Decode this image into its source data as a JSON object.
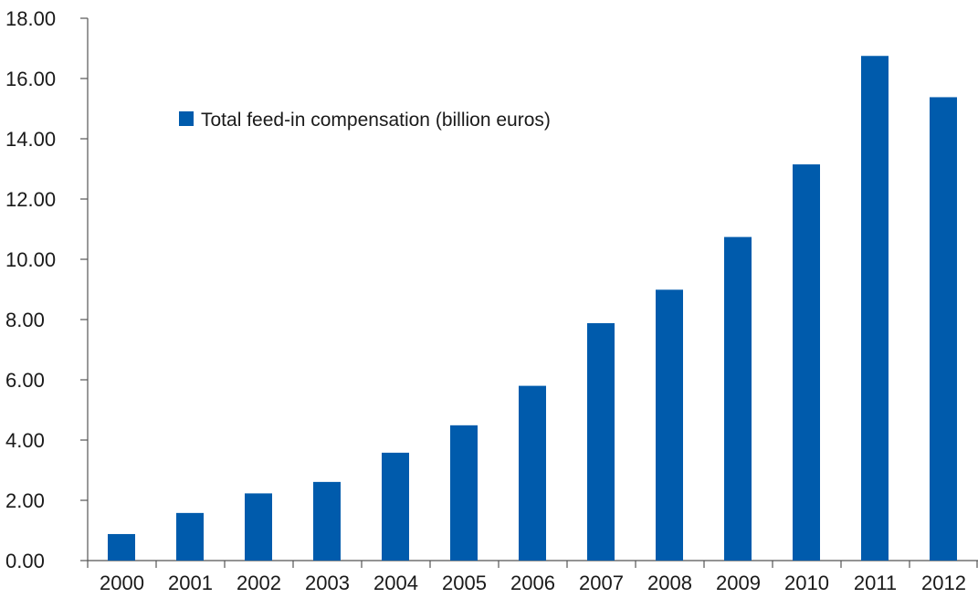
{
  "chart_data": {
    "type": "bar",
    "title": "",
    "xlabel": "",
    "ylabel": "",
    "categories": [
      "2000",
      "2001",
      "2002",
      "2003",
      "2004",
      "2005",
      "2006",
      "2007",
      "2008",
      "2009",
      "2010",
      "2011",
      "2012"
    ],
    "series": [
      {
        "name": "Total feed-in compensation (billion euros)",
        "values": [
          0.88,
          1.58,
          2.23,
          2.61,
          3.58,
          4.49,
          5.8,
          7.88,
          8.99,
          10.74,
          13.15,
          16.75,
          15.38
        ],
        "color": "#005BAC"
      }
    ],
    "ylim": [
      0,
      18
    ],
    "yticks": [
      "0.00",
      "2.00",
      "4.00",
      "6.00",
      "8.00",
      "10.00",
      "12.00",
      "14.00",
      "16.00",
      "18.00"
    ],
    "grid": false,
    "legend_position": "top-left"
  }
}
